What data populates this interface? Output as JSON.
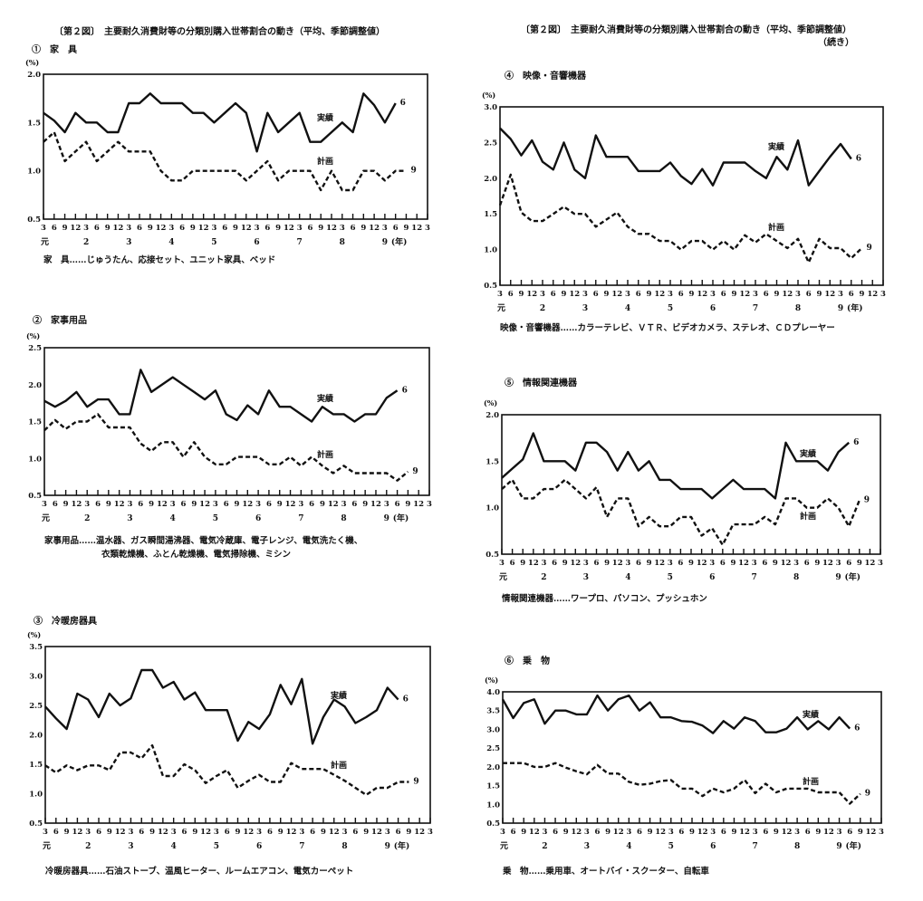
{
  "page_title": "〔第２図〕　主要耐久消費財等の分類別購入世帯割合の動き（平均、季節調整値）",
  "continued": "（続き）",
  "chart_data": [
    {
      "type": "line",
      "title": "①　家　具",
      "ylabel": "(%)",
      "ylim": [
        0.5,
        2.0
      ],
      "yticks": [
        "0.5",
        "1.0",
        "1.5",
        "2.0"
      ],
      "x_ticks": [
        "3",
        "6",
        "9",
        "12",
        "3",
        "6",
        "9",
        "12",
        "3",
        "6",
        "9",
        "12",
        "3",
        "6",
        "9",
        "12",
        "3",
        "6",
        "9",
        "12",
        "3",
        "6",
        "9",
        "12",
        "3",
        "6",
        "9",
        "12",
        "3",
        "6",
        "9",
        "12",
        "3",
        "6",
        "9",
        "12",
        "3"
      ],
      "year_labels": [
        "元",
        "2",
        "3",
        "4",
        "5",
        "6",
        "7",
        "8",
        "9"
      ],
      "year_unit": "(年)",
      "series": [
        {
          "name": "実績",
          "end_label": "6",
          "style": "solid",
          "values": [
            1.6,
            1.52,
            1.4,
            1.6,
            1.5,
            1.5,
            1.4,
            1.4,
            1.7,
            1.7,
            1.8,
            1.7,
            1.7,
            1.7,
            1.6,
            1.6,
            1.5,
            1.6,
            1.7,
            1.6,
            1.2,
            1.6,
            1.4,
            1.5,
            1.6,
            1.3,
            1.3,
            1.4,
            1.5,
            1.4,
            1.8,
            1.68,
            1.5,
            1.7
          ]
        },
        {
          "name": "計画",
          "end_label": "9",
          "style": "dashed",
          "values": [
            1.3,
            1.4,
            1.1,
            1.2,
            1.3,
            1.1,
            1.2,
            1.3,
            1.2,
            1.2,
            1.2,
            1.0,
            0.9,
            0.9,
            1.0,
            1.0,
            1.0,
            1.0,
            1.0,
            0.9,
            1.0,
            1.1,
            0.9,
            1.0,
            1.0,
            1.0,
            0.8,
            1.0,
            0.8,
            0.8,
            1.0,
            1.0,
            0.9,
            1.0,
            1.0
          ]
        }
      ],
      "note_lines": [
        "家　具……じゅうたん、応接セット、ユニット家具、ベッド"
      ]
    },
    {
      "type": "line",
      "title": "②　家事用品",
      "ylabel": "(%)",
      "ylim": [
        0.5,
        2.5
      ],
      "yticks": [
        "0.5",
        "1.0",
        "1.5",
        "2.0",
        "2.5"
      ],
      "x_ticks": [
        "3",
        "6",
        "9",
        "12",
        "3",
        "6",
        "9",
        "12",
        "3",
        "6",
        "9",
        "12",
        "3",
        "6",
        "9",
        "12",
        "3",
        "6",
        "9",
        "12",
        "3",
        "6",
        "9",
        "12",
        "3",
        "6",
        "9",
        "12",
        "3",
        "6",
        "9",
        "12",
        "3",
        "6",
        "9",
        "12",
        "3"
      ],
      "year_labels": [
        "元",
        "2",
        "3",
        "4",
        "5",
        "6",
        "7",
        "8",
        "9"
      ],
      "year_unit": "(年)",
      "series": [
        {
          "name": "実績",
          "end_label": "6",
          "style": "solid",
          "values": [
            1.78,
            1.7,
            1.78,
            1.9,
            1.7,
            1.8,
            1.8,
            1.6,
            1.6,
            2.2,
            1.9,
            2.0,
            2.1,
            2.0,
            1.9,
            1.8,
            1.92,
            1.6,
            1.52,
            1.72,
            1.6,
            1.92,
            1.7,
            1.7,
            1.6,
            1.5,
            1.7,
            1.6,
            1.6,
            1.5,
            1.6,
            1.6,
            1.82,
            1.92
          ]
        },
        {
          "name": "計画",
          "end_label": "9",
          "style": "dashed",
          "values": [
            1.38,
            1.52,
            1.4,
            1.5,
            1.5,
            1.6,
            1.42,
            1.42,
            1.42,
            1.2,
            1.1,
            1.22,
            1.22,
            1.02,
            1.22,
            1.02,
            0.92,
            0.92,
            1.02,
            1.02,
            1.02,
            0.92,
            0.92,
            1.02,
            0.9,
            1.02,
            0.9,
            0.8,
            0.9,
            0.8,
            0.8,
            0.8,
            0.8,
            0.7,
            0.82
          ]
        }
      ],
      "note_lines": [
        "家事用品……温水器、ガス瞬間湯沸器、電気冷蔵庫、電子レンジ、電気洗たく機、",
        "衣類乾燥機、ふとん乾燥機、電気掃除機、ミシン"
      ]
    },
    {
      "type": "line",
      "title": "③　冷暖房器具",
      "ylabel": "(%)",
      "ylim": [
        0.5,
        3.5
      ],
      "yticks": [
        "0.5",
        "1.0",
        "1.5",
        "2.0",
        "2.5",
        "3.0",
        "3.5"
      ],
      "x_ticks": [
        "3",
        "6",
        "9",
        "12",
        "3",
        "6",
        "9",
        "12",
        "3",
        "6",
        "9",
        "12",
        "3",
        "6",
        "9",
        "12",
        "3",
        "6",
        "9",
        "12",
        "3",
        "6",
        "9",
        "12",
        "3",
        "6",
        "9",
        "12",
        "3",
        "6",
        "9",
        "12",
        "3",
        "6",
        "9",
        "12",
        "3"
      ],
      "year_labels": [
        "元",
        "2",
        "3",
        "4",
        "5",
        "6",
        "7",
        "8",
        "9"
      ],
      "year_unit": "(年)",
      "series": [
        {
          "name": "実績",
          "end_label": "6",
          "style": "solid",
          "values": [
            2.48,
            2.28,
            2.1,
            2.7,
            2.6,
            2.3,
            2.7,
            2.5,
            2.62,
            3.1,
            3.1,
            2.8,
            2.9,
            2.6,
            2.72,
            2.42,
            2.42,
            2.42,
            1.9,
            2.22,
            2.1,
            2.35,
            2.85,
            2.52,
            2.95,
            1.85,
            2.3,
            2.6,
            2.48,
            2.2,
            2.3,
            2.42,
            2.8,
            2.6
          ]
        },
        {
          "name": "計画",
          "end_label": "9",
          "style": "dashed",
          "values": [
            1.48,
            1.36,
            1.48,
            1.4,
            1.48,
            1.48,
            1.4,
            1.7,
            1.7,
            1.6,
            1.82,
            1.3,
            1.3,
            1.5,
            1.4,
            1.18,
            1.3,
            1.4,
            1.1,
            1.22,
            1.32,
            1.2,
            1.2,
            1.52,
            1.42,
            1.42,
            1.42,
            1.32,
            1.22,
            1.1,
            0.98,
            1.1,
            1.1,
            1.2,
            1.2
          ]
        }
      ],
      "note_lines": [
        "冷暖房器具……石油ストーブ、温風ヒーター、ルームエアコン、電気カーペット"
      ]
    },
    {
      "type": "line",
      "title": "④　映像・音響機器",
      "ylabel": "(%)",
      "ylim": [
        0.5,
        3.0
      ],
      "yticks": [
        "0.5",
        "1.0",
        "1.5",
        "2.0",
        "2.5",
        "3.0"
      ],
      "x_ticks": [
        "3",
        "6",
        "9",
        "12",
        "3",
        "6",
        "9",
        "12",
        "3",
        "6",
        "9",
        "12",
        "3",
        "6",
        "9",
        "12",
        "3",
        "6",
        "9",
        "12",
        "3",
        "6",
        "9",
        "12",
        "3",
        "6",
        "9",
        "12",
        "3",
        "6",
        "9",
        "12",
        "3",
        "6",
        "9",
        "12",
        "3"
      ],
      "year_labels": [
        "元",
        "2",
        "3",
        "4",
        "5",
        "6",
        "7",
        "8",
        "9"
      ],
      "year_unit": "(年)",
      "series": [
        {
          "name": "実績",
          "end_label": "6",
          "style": "solid",
          "values": [
            2.7,
            2.55,
            2.32,
            2.53,
            2.23,
            2.12,
            2.5,
            2.12,
            2.0,
            2.6,
            2.3,
            2.3,
            2.3,
            2.1,
            2.1,
            2.1,
            2.22,
            2.03,
            1.92,
            2.13,
            1.9,
            2.22,
            2.22,
            2.22,
            2.1,
            2.0,
            2.3,
            2.12,
            2.53,
            1.9,
            2.1,
            2.3,
            2.48,
            2.27
          ]
        },
        {
          "name": "計画",
          "end_label": "9",
          "style": "dashed",
          "values": [
            1.62,
            2.05,
            1.52,
            1.4,
            1.4,
            1.5,
            1.6,
            1.5,
            1.5,
            1.32,
            1.42,
            1.52,
            1.32,
            1.22,
            1.22,
            1.12,
            1.12,
            1.0,
            1.12,
            1.12,
            1.0,
            1.12,
            1.0,
            1.2,
            1.1,
            1.22,
            1.12,
            1.02,
            1.15,
            0.82,
            1.15,
            1.02,
            1.02,
            0.88,
            1.02
          ]
        }
      ],
      "note_lines": [
        "映像・音響機器……カラーテレビ、ＶＴＲ、ビデオカメラ、ステレオ、ＣＤプレーヤー"
      ]
    },
    {
      "type": "line",
      "title": "⑤　情報関連機器",
      "ylabel": "(%)",
      "ylim": [
        0.5,
        2.0
      ],
      "yticks": [
        "0.5",
        "1.0",
        "1.5",
        "2.0"
      ],
      "x_ticks": [
        "3",
        "6",
        "9",
        "12",
        "3",
        "6",
        "9",
        "12",
        "3",
        "6",
        "9",
        "12",
        "3",
        "6",
        "9",
        "12",
        "3",
        "6",
        "9",
        "12",
        "3",
        "6",
        "9",
        "12",
        "3",
        "6",
        "9",
        "12",
        "3",
        "6",
        "9",
        "12",
        "3",
        "6",
        "9",
        "12",
        "3"
      ],
      "year_labels": [
        "元",
        "2",
        "3",
        "4",
        "5",
        "6",
        "7",
        "8",
        "9"
      ],
      "year_unit": "(年)",
      "series": [
        {
          "name": "実績",
          "end_label": "6",
          "style": "solid",
          "values": [
            1.32,
            1.42,
            1.52,
            1.8,
            1.5,
            1.5,
            1.5,
            1.4,
            1.7,
            1.7,
            1.6,
            1.4,
            1.6,
            1.4,
            1.5,
            1.3,
            1.3,
            1.2,
            1.2,
            1.2,
            1.1,
            1.2,
            1.3,
            1.2,
            1.2,
            1.2,
            1.1,
            1.7,
            1.5,
            1.5,
            1.5,
            1.4,
            1.6,
            1.7
          ]
        },
        {
          "name": "計画",
          "end_label": "9",
          "style": "dashed",
          "values": [
            1.2,
            1.3,
            1.1,
            1.1,
            1.2,
            1.2,
            1.3,
            1.2,
            1.1,
            1.22,
            0.9,
            1.1,
            1.1,
            0.8,
            0.9,
            0.8,
            0.8,
            0.9,
            0.9,
            0.7,
            0.78,
            0.6,
            0.82,
            0.82,
            0.82,
            0.9,
            0.82,
            1.1,
            1.1,
            1.0,
            1.0,
            1.1,
            1.0,
            0.8,
            1.08
          ]
        }
      ],
      "note_lines": [
        "情報関連機器……ワープロ、パソコン、プッシュホン"
      ]
    },
    {
      "type": "line",
      "title": "⑥　乗　物",
      "ylabel": "(%)",
      "ylim": [
        0.5,
        4.0
      ],
      "yticks": [
        "0.5",
        "1.0",
        "1.5",
        "2.0",
        "2.5",
        "3.0",
        "3.5",
        "4.0"
      ],
      "x_ticks": [
        "3",
        "6",
        "9",
        "12",
        "3",
        "6",
        "9",
        "12",
        "3",
        "6",
        "9",
        "12",
        "3",
        "6",
        "9",
        "12",
        "3",
        "6",
        "9",
        "12",
        "3",
        "6",
        "9",
        "12",
        "3",
        "6",
        "9",
        "12",
        "3",
        "6",
        "9",
        "12",
        "3",
        "6",
        "9",
        "12",
        "3"
      ],
      "year_labels": [
        "元",
        "2",
        "3",
        "4",
        "5",
        "6",
        "7",
        "8",
        "9"
      ],
      "year_unit": "(年)",
      "series": [
        {
          "name": "実績",
          "end_label": "6",
          "style": "solid",
          "values": [
            3.8,
            3.3,
            3.7,
            3.8,
            3.15,
            3.5,
            3.5,
            3.4,
            3.4,
            3.9,
            3.5,
            3.8,
            3.9,
            3.5,
            3.72,
            3.32,
            3.32,
            3.22,
            3.2,
            3.1,
            2.9,
            3.22,
            3.02,
            3.32,
            3.22,
            2.92,
            2.92,
            3.02,
            3.32,
            3.0,
            3.22,
            3.0,
            3.32,
            3.02
          ]
        },
        {
          "name": "計画",
          "end_label": "9",
          "style": "dashed",
          "values": [
            2.1,
            2.1,
            2.1,
            2.0,
            2.0,
            2.1,
            1.98,
            1.88,
            1.8,
            2.05,
            1.82,
            1.82,
            1.6,
            1.52,
            1.55,
            1.62,
            1.65,
            1.42,
            1.42,
            1.22,
            1.42,
            1.32,
            1.42,
            1.65,
            1.3,
            1.55,
            1.32,
            1.42,
            1.42,
            1.42,
            1.32,
            1.32,
            1.32,
            1.02,
            1.28
          ]
        }
      ],
      "note_lines": [
        "乗　物……乗用車、オートバイ・スクーター、自転車"
      ]
    }
  ]
}
